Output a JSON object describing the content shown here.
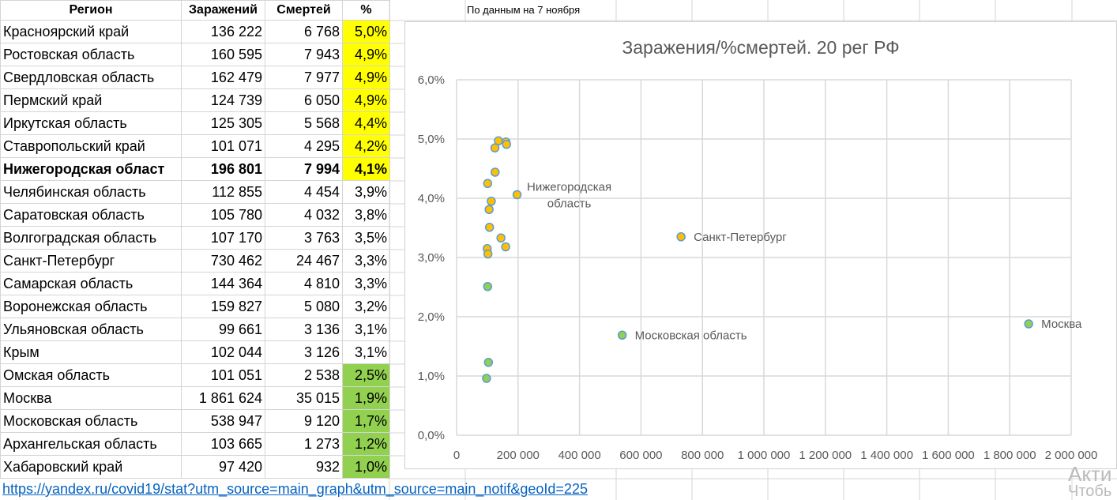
{
  "note": "По данным на 7 ноября",
  "headers": [
    "Регион",
    "Заражений",
    "Смертей",
    "%"
  ],
  "rows": [
    {
      "region": "Красноярский край",
      "cases": "136 222",
      "deaths": "6 768",
      "pct": "5,0%",
      "hl": "yellow"
    },
    {
      "region": "Ростовская область",
      "cases": "160 595",
      "deaths": "7 943",
      "pct": "4,9%",
      "hl": "yellow"
    },
    {
      "region": "Свердловская область",
      "cases": "162 479",
      "deaths": "7 977",
      "pct": "4,9%",
      "hl": "yellow"
    },
    {
      "region": "Пермский край",
      "cases": "124 739",
      "deaths": "6 050",
      "pct": "4,9%",
      "hl": "yellow"
    },
    {
      "region": "Иркутская область",
      "cases": "125 305",
      "deaths": "5 568",
      "pct": "4,4%",
      "hl": "yellow"
    },
    {
      "region": "Ставропольский край",
      "cases": "101 071",
      "deaths": "4 295",
      "pct": "4,2%",
      "hl": "yellow"
    },
    {
      "region": "Нижегородская област",
      "cases": "196 801",
      "deaths": "7 994",
      "pct": "4,1%",
      "hl": "yellow",
      "bold": true
    },
    {
      "region": "Челябинская область",
      "cases": "112 855",
      "deaths": "4 454",
      "pct": "3,9%"
    },
    {
      "region": "Саратовская область",
      "cases": "105 780",
      "deaths": "4 032",
      "pct": "3,8%"
    },
    {
      "region": "Волгоградская область",
      "cases": "107 170",
      "deaths": "3 763",
      "pct": "3,5%"
    },
    {
      "region": "Санкт-Петербург",
      "cases": "730 462",
      "deaths": "24 467",
      "pct": "3,3%"
    },
    {
      "region": "Самарская область",
      "cases": "144 364",
      "deaths": "4 810",
      "pct": "3,3%"
    },
    {
      "region": "Воронежская область",
      "cases": "159 827",
      "deaths": "5 080",
      "pct": "3,2%"
    },
    {
      "region": "Ульяновская область",
      "cases": "99 661",
      "deaths": "3 136",
      "pct": "3,1%"
    },
    {
      "region": "Крым",
      "cases": "102 044",
      "deaths": "3 126",
      "pct": "3,1%"
    },
    {
      "region": "Омская область",
      "cases": "101 051",
      "deaths": "2 538",
      "pct": "2,5%",
      "hl": "green"
    },
    {
      "region": "Москва",
      "cases": "1 861 624",
      "deaths": "35 015",
      "pct": "1,9%",
      "hl": "green"
    },
    {
      "region": "Московская область",
      "cases": "538 947",
      "deaths": "9 120",
      "pct": "1,7%",
      "hl": "green"
    },
    {
      "region": "Архангельская область",
      "cases": "103 665",
      "deaths": "1 273",
      "pct": "1,2%",
      "hl": "green"
    },
    {
      "region": "Хабаровский край",
      "cases": "97 420",
      "deaths": "932",
      "pct": "1,0%",
      "hl": "green"
    }
  ],
  "link": "https://yandex.ru/covid19/stat?utm_source=main_graph&utm_source=main_notif&geoId=225",
  "watermark": [
    "Акти",
    "Чтобь"
  ],
  "colors": {
    "yellow": "#FFFF00",
    "green": "#92D050",
    "dot_high": "#FFC000",
    "dot_low": "#92D050",
    "dot_border": "#5B9BD5"
  },
  "chart_data": {
    "type": "scatter",
    "title": "Заражения/%смертей. 20 рег РФ",
    "xlim": [
      0,
      2000000
    ],
    "ylim": [
      0,
      0.06
    ],
    "xticks": [
      0,
      200000,
      400000,
      600000,
      800000,
      1000000,
      1200000,
      1400000,
      1600000,
      1800000,
      2000000
    ],
    "xtick_labels": [
      "0",
      "200 000",
      "400 000",
      "600 000",
      "800 000",
      "1 000 000",
      "1 200 000",
      "1 400 000",
      "1 600 000",
      "1 800 000",
      "2 000 000"
    ],
    "ytick_labels": [
      "0,0%",
      "1,0%",
      "2,0%",
      "3,0%",
      "4,0%",
      "5,0%",
      "6,0%"
    ],
    "points": [
      [
        136222,
        0.0497,
        "high"
      ],
      [
        160595,
        0.0495,
        "high"
      ],
      [
        162479,
        0.0491,
        "high"
      ],
      [
        124739,
        0.0485,
        "high"
      ],
      [
        125305,
        0.0444,
        "high"
      ],
      [
        101071,
        0.0425,
        "high"
      ],
      [
        196801,
        0.0406,
        "high"
      ],
      [
        112855,
        0.0395,
        "high"
      ],
      [
        105780,
        0.0381,
        "high"
      ],
      [
        107170,
        0.0351,
        "high"
      ],
      [
        730462,
        0.0335,
        "high"
      ],
      [
        144364,
        0.0333,
        "high"
      ],
      [
        159827,
        0.0318,
        "high"
      ],
      [
        99661,
        0.0315,
        "high"
      ],
      [
        102044,
        0.0306,
        "high"
      ],
      [
        101051,
        0.0251,
        "low"
      ],
      [
        1861624,
        0.0188,
        "low"
      ],
      [
        538947,
        0.0169,
        "low"
      ],
      [
        103665,
        0.0123,
        "low"
      ],
      [
        97420,
        0.0096,
        "low"
      ]
    ],
    "annotations": [
      {
        "text": "Нижегородская",
        "x": 196801,
        "y": 0.0406,
        "pos": "above-right"
      },
      {
        "text": "область",
        "x": 196801,
        "y": 0.0406,
        "pos": "below-right"
      },
      {
        "text": "Санкт-Петербург",
        "x": 730462,
        "y": 0.0335,
        "pos": "right"
      },
      {
        "text": "Московская область",
        "x": 538947,
        "y": 0.0169,
        "pos": "right"
      },
      {
        "text": "Москва",
        "x": 1861624,
        "y": 0.0188,
        "pos": "right"
      }
    ]
  }
}
